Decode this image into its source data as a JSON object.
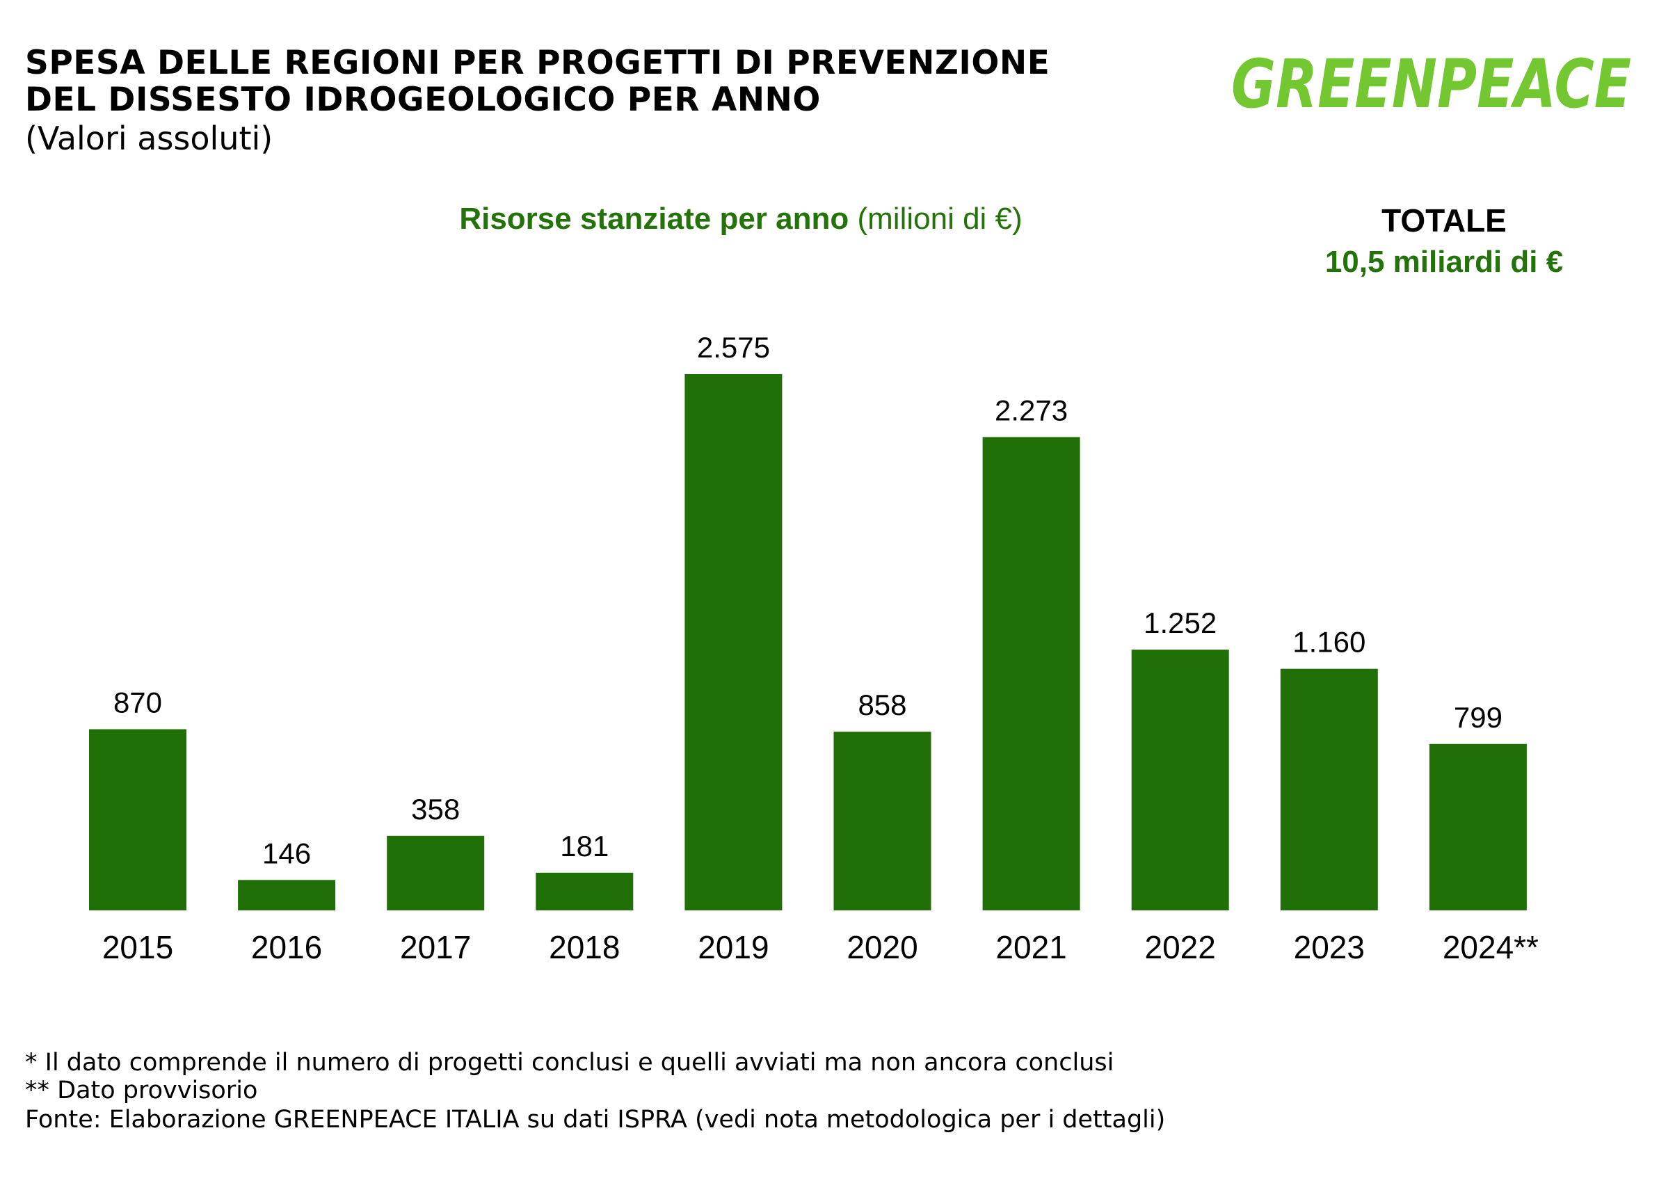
{
  "title_lines": [
    "SPESA DELLE REGIONI PER PROGETTI DI PREVENZIONE",
    "DEL DISSESTO IDROGEOLOGICO PER ANNO"
  ],
  "subtitle": "(Valori assoluti)",
  "logo_text": "GREENPEACE",
  "colors": {
    "bar": "#216f07",
    "accent_text": "#24730a",
    "logo": "#73c730"
  },
  "chart_data": {
    "type": "bar",
    "title_bold": "Risorse stanziate per anno",
    "title_unit": "(milioni di  €)",
    "categories": [
      "2015",
      "2016",
      "2017",
      "2018",
      "2019",
      "2020",
      "2021",
      "2022",
      "2023",
      "2024**"
    ],
    "values": [
      870,
      146,
      358,
      181,
      2575,
      858,
      2273,
      1252,
      1160,
      799
    ],
    "value_labels": [
      "870",
      "146",
      "358",
      "181",
      "2.575",
      "858",
      "2.273",
      "1.252",
      "1.160",
      "799"
    ],
    "ylim": [
      0,
      2575
    ],
    "grid": false
  },
  "total": {
    "label": "TOTALE",
    "value": "10,5 miliardi di €"
  },
  "footnotes": [
    "* Il dato comprende il numero di progetti conclusi e quelli avviati ma non ancora conclusi",
    "** Dato provvisorio",
    "Fonte: Elaborazione GREENPEACE ITALIA su dati ISPRA (vedi nota metodologica per i dettagli)"
  ]
}
